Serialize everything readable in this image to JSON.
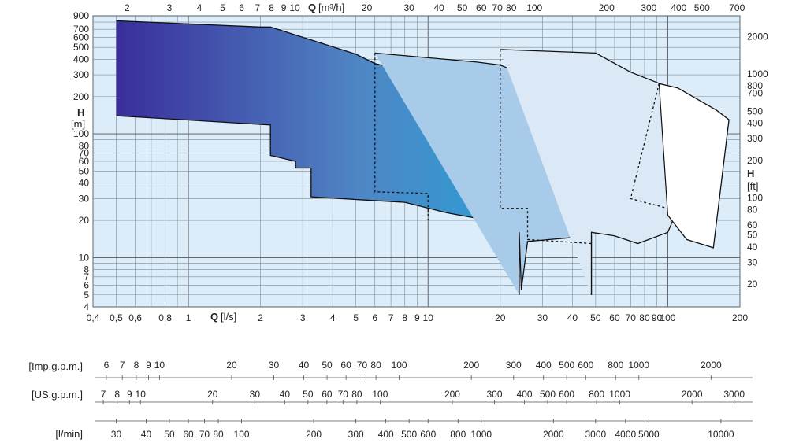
{
  "chart_data": {
    "type": "area",
    "title": "",
    "x_axis_bottom": {
      "symbol": "Q",
      "unit": "[l/s]",
      "scale": "log",
      "range": [
        0.4,
        200
      ],
      "tick_labels": [
        "0,4",
        "0,5",
        "0,6",
        "0,8",
        "1",
        "2",
        "3",
        "4",
        "5",
        "6",
        "7",
        "8",
        "9",
        "10",
        "20",
        "30",
        "40",
        "50",
        "60",
        "70",
        "80",
        "90",
        "100",
        "200"
      ],
      "tick_values": [
        0.4,
        0.5,
        0.6,
        0.8,
        1,
        2,
        3,
        4,
        5,
        6,
        7,
        8,
        9,
        10,
        20,
        30,
        40,
        50,
        60,
        70,
        80,
        90,
        100,
        200
      ]
    },
    "x_axis_top": {
      "symbol": "Q",
      "unit": "[m³/h]",
      "scale": "log",
      "tick_labels": [
        "2",
        "3",
        "4",
        "5",
        "6",
        "7",
        "8",
        "9",
        "10",
        "20",
        "30",
        "40",
        "50",
        "60",
        "70",
        "80",
        "100",
        "200",
        "300",
        "400",
        "500",
        "700"
      ],
      "tick_values": [
        2,
        3,
        4,
        5,
        6,
        7,
        8,
        9,
        10,
        20,
        30,
        40,
        50,
        60,
        70,
        80,
        100,
        200,
        300,
        400,
        500,
        700
      ]
    },
    "y_axis_left": {
      "symbol": "H",
      "unit": "[m]",
      "scale": "log",
      "range": [
        4,
        900
      ],
      "tick_labels": [
        "900",
        "700",
        "600",
        "500",
        "400",
        "300",
        "200",
        "100",
        "80",
        "70",
        "60",
        "50",
        "40",
        "30",
        "20",
        "10",
        "8",
        "7",
        "6",
        "5",
        "4"
      ],
      "tick_values": [
        900,
        700,
        600,
        500,
        400,
        300,
        200,
        100,
        80,
        70,
        60,
        50,
        40,
        30,
        20,
        10,
        8,
        7,
        6,
        5,
        4
      ]
    },
    "y_axis_right": {
      "symbol": "H",
      "unit": "[ft]",
      "scale": "log",
      "tick_labels": [
        "2000",
        "1000",
        "800",
        "700",
        "500",
        "400",
        "300",
        "200",
        "100",
        "80",
        "60",
        "50",
        "40",
        "30",
        "20"
      ],
      "tick_values": [
        2000,
        1000,
        800,
        700,
        500,
        400,
        300,
        200,
        100,
        80,
        60,
        50,
        40,
        30,
        20
      ]
    },
    "extra_scales": [
      {
        "unit": "[Imp.g.p.m.]",
        "tick_labels": [
          "6",
          "7",
          "8",
          "9",
          "10",
          "20",
          "30",
          "40",
          "50",
          "60",
          "70",
          "80",
          "100",
          "200",
          "300",
          "400",
          "500",
          "600",
          "800",
          "1000",
          "2000"
        ],
        "tick_values": [
          6,
          7,
          8,
          9,
          10,
          20,
          30,
          40,
          50,
          60,
          70,
          80,
          100,
          200,
          300,
          400,
          500,
          600,
          800,
          1000,
          2000
        ]
      },
      {
        "unit": "[US.g.p.m.]",
        "tick_labels": [
          "7",
          "8",
          "9",
          "10",
          "20",
          "30",
          "40",
          "50",
          "60",
          "70",
          "80",
          "100",
          "200",
          "300",
          "400",
          "500",
          "600",
          "800",
          "1000",
          "2000",
          "3000"
        ],
        "tick_values": [
          7,
          8,
          9,
          10,
          20,
          30,
          40,
          50,
          60,
          70,
          80,
          100,
          200,
          300,
          400,
          500,
          600,
          800,
          1000,
          2000,
          3000
        ]
      },
      {
        "unit": "[l/min]",
        "tick_labels": [
          "30",
          "40",
          "50",
          "60",
          "70",
          "80",
          "100",
          "200",
          "300",
          "400",
          "500",
          "600",
          "800",
          "1000",
          "2000",
          "3000",
          "4000",
          "5000",
          "10000"
        ],
        "tick_values": [
          30,
          40,
          50,
          60,
          70,
          80,
          100,
          200,
          300,
          400,
          500,
          600,
          800,
          1000,
          2000,
          3000,
          4000,
          5000,
          10000
        ]
      }
    ],
    "grid": true,
    "series": [
      {
        "fill": "gradient",
        "gradient_colors": [
          "#3a2e9b",
          "#4f86c4",
          "#2a9fd6"
        ],
        "upper": [
          [
            0.5,
            820
          ],
          [
            2,
            730
          ],
          [
            2.2,
            730
          ],
          [
            5,
            440
          ],
          [
            6,
            370
          ],
          [
            12,
            270
          ],
          [
            24,
            92
          ]
        ],
        "lower": [
          [
            0.5,
            140
          ],
          [
            2.2,
            118
          ],
          [
            2.2,
            67
          ],
          [
            2.8,
            60
          ],
          [
            2.8,
            53
          ],
          [
            3.25,
            53
          ],
          [
            3.25,
            31
          ],
          [
            5.8,
            29
          ],
          [
            8,
            28
          ],
          [
            12,
            23
          ],
          [
            24,
            18
          ],
          [
            24,
            5
          ]
        ]
      },
      {
        "fill": "#a8cbe9",
        "upper": [
          [
            6,
            450
          ],
          [
            16,
            380
          ],
          [
            20,
            360
          ],
          [
            25,
            300
          ],
          [
            35,
            170
          ],
          [
            48,
            110
          ]
        ],
        "lower": [
          [
            24,
            5
          ],
          [
            24,
            16
          ],
          [
            24.5,
            5.5
          ],
          [
            26,
            13.5
          ],
          [
            48,
            15
          ],
          [
            48,
            5
          ]
        ]
      },
      {
        "fill": "#dbe9f6",
        "upper": [
          [
            20,
            480
          ],
          [
            50,
            450
          ],
          [
            70,
            315
          ],
          [
            100,
            240
          ],
          [
            105,
            145
          ]
        ],
        "lower": [
          [
            48,
            5
          ],
          [
            48,
            16
          ],
          [
            60,
            15
          ],
          [
            75,
            13
          ],
          [
            100,
            16
          ],
          [
            105,
            20
          ]
        ]
      },
      {
        "fill": "#ffffff",
        "upper": [
          [
            92,
            255
          ],
          [
            110,
            235
          ],
          [
            160,
            155
          ],
          [
            180,
            130
          ]
        ],
        "lower": [
          [
            100,
            22
          ],
          [
            120,
            14
          ],
          [
            155,
            12
          ],
          [
            180,
            130
          ]
        ]
      }
    ]
  }
}
